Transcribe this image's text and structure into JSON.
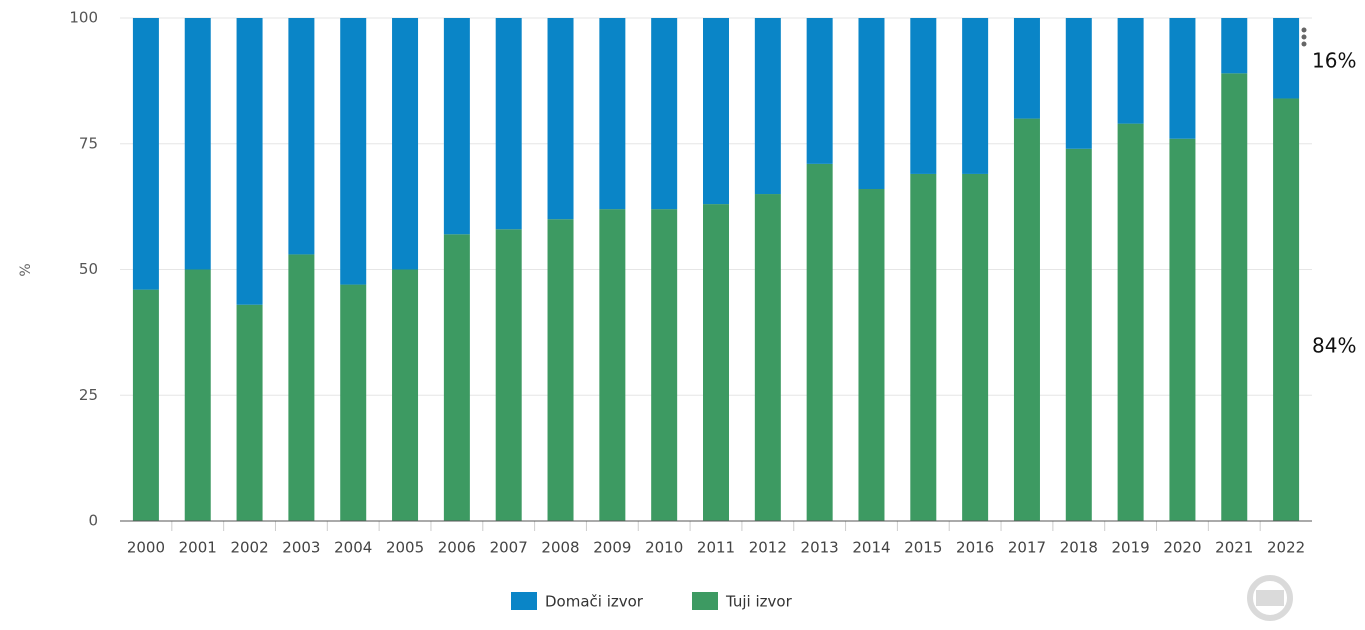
{
  "chart_data": {
    "type": "stacked_bar",
    "ylabel": "%",
    "categories": [
      "2000",
      "2001",
      "2002",
      "2003",
      "2004",
      "2005",
      "2006",
      "2007",
      "2008",
      "2009",
      "2010",
      "2011",
      "2012",
      "2013",
      "2014",
      "2015",
      "2016",
      "2017",
      "2018",
      "2019",
      "2020",
      "2021",
      "2022"
    ],
    "series": [
      {
        "name": "Domači izvor",
        "color": "#0a85c7",
        "values": [
          54,
          50,
          57,
          47,
          53,
          50,
          43,
          42,
          40,
          38,
          38,
          37,
          35,
          29,
          34,
          31,
          31,
          20,
          26,
          21,
          24,
          11,
          16
        ]
      },
      {
        "name": "Tuji izvor",
        "color": "#3d9a62",
        "values": [
          46,
          50,
          43,
          53,
          47,
          50,
          57,
          58,
          60,
          62,
          62,
          63,
          65,
          71,
          66,
          69,
          69,
          80,
          74,
          79,
          76,
          89,
          84
        ]
      }
    ],
    "annotations": [
      "16%",
      "84%"
    ],
    "ylim": [
      0,
      100
    ],
    "yticks": [
      0,
      25,
      50,
      75,
      100
    ],
    "grid": true
  }
}
